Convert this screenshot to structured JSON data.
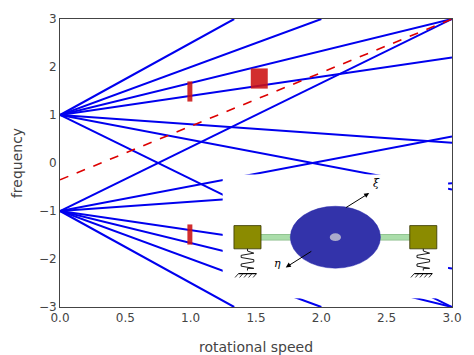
{
  "chart_data": {
    "type": "line",
    "xlabel": "rotational speed",
    "ylabel": "frequency",
    "xlim": [
      0,
      3
    ],
    "ylim": [
      -3,
      3
    ],
    "xticks": [
      {
        "value": 0,
        "label": "0.0"
      },
      {
        "value": 0.5,
        "label": "0.5"
      },
      {
        "value": 1,
        "label": "1.0"
      },
      {
        "value": 1.5,
        "label": "1.5"
      },
      {
        "value": 2,
        "label": "2.0"
      },
      {
        "value": 2.5,
        "label": "2.5"
      },
      {
        "value": 3,
        "label": "3.0"
      }
    ],
    "yticks": [
      {
        "value": -3,
        "label": "−3"
      },
      {
        "value": -2,
        "label": "−2"
      },
      {
        "value": -1,
        "label": "−1"
      },
      0,
      1,
      2,
      3
    ],
    "grid": false,
    "series": [
      {
        "x": [
          0,
          1.333
        ],
        "values": [
          1,
          3
        ],
        "color": "#0000ee"
      },
      {
        "x": [
          0,
          2.0
        ],
        "values": [
          1,
          3
        ],
        "color": "#0000ee"
      },
      {
        "x": [
          0,
          3
        ],
        "values": [
          1,
          3
        ],
        "color": "#0000ee"
      },
      {
        "x": [
          0,
          3
        ],
        "values": [
          1,
          2.2
        ],
        "color": "#0000ee"
      },
      {
        "x": [
          0,
          3
        ],
        "values": [
          1,
          0.42
        ],
        "color": "#0000ee"
      },
      {
        "x": [
          0,
          3
        ],
        "values": [
          1,
          -0.55
        ],
        "color": "#0000ee"
      },
      {
        "x": [
          0,
          3
        ],
        "values": [
          1,
          -3
        ],
        "color": "#0000ee"
      },
      {
        "x": [
          0,
          1.333
        ],
        "values": [
          -1,
          -3
        ],
        "color": "#0000ee"
      },
      {
        "x": [
          0,
          2.0
        ],
        "values": [
          -1,
          -3
        ],
        "color": "#0000ee"
      },
      {
        "x": [
          0,
          3
        ],
        "values": [
          -1,
          -3
        ],
        "color": "#0000ee"
      },
      {
        "x": [
          0,
          3
        ],
        "values": [
          -1,
          -2.2
        ],
        "color": "#0000ee"
      },
      {
        "x": [
          0,
          3
        ],
        "values": [
          -1,
          -0.42
        ],
        "color": "#0000ee"
      },
      {
        "x": [
          0,
          3
        ],
        "values": [
          -1,
          0.55
        ],
        "color": "#0000ee"
      },
      {
        "x": [
          0,
          3
        ],
        "values": [
          -1,
          3
        ],
        "color": "#0000ee"
      },
      {
        "x": [
          0.0,
          3.0
        ],
        "values": [
          -0.35,
          3.0
        ],
        "color": "#dd0000",
        "line_style": "dashed"
      }
    ],
    "rects": [
      {
        "x": 0.975,
        "y": 1.28,
        "width": 0.038,
        "height": 0.42,
        "color": "#cc1111"
      },
      {
        "x": 1.46,
        "y": 1.55,
        "width": 0.13,
        "height": 0.42,
        "color": "#cc1111"
      },
      {
        "x": 0.975,
        "y": -1.7,
        "width": 0.038,
        "height": 0.42,
        "color": "#cc1111"
      }
    ],
    "annotations": [
      {
        "text": "ξ"
      },
      {
        "text": "η"
      }
    ]
  }
}
